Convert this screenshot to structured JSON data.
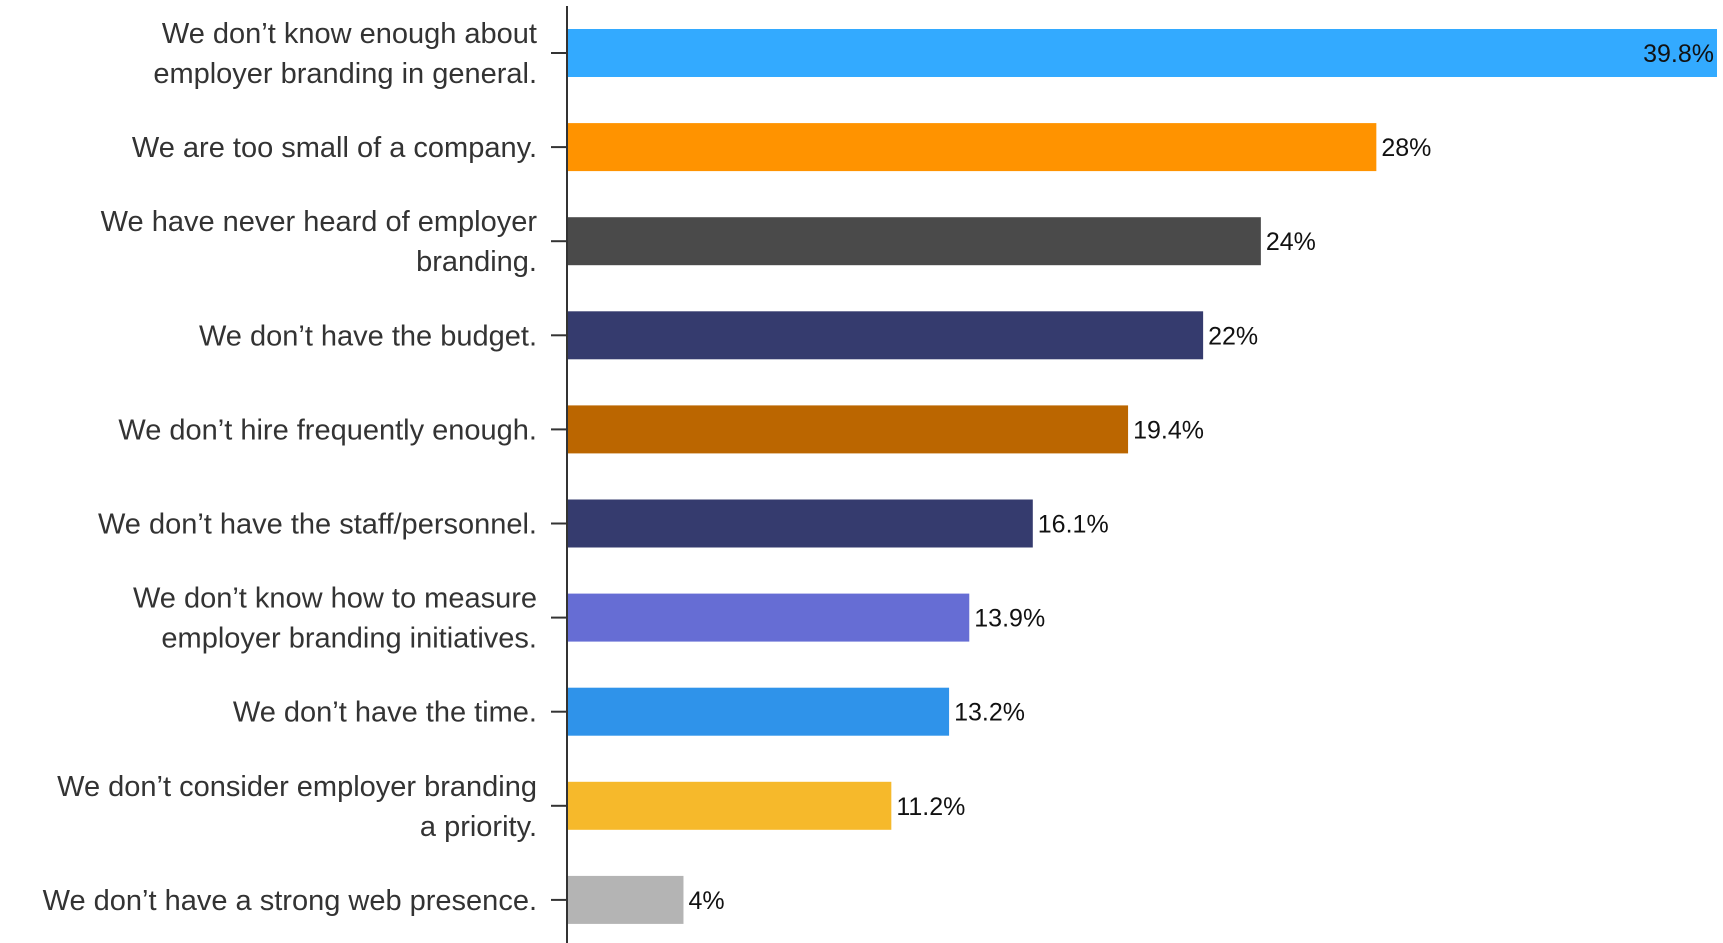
{
  "chart_data": {
    "type": "bar",
    "orientation": "horizontal",
    "title": "",
    "xlabel": "",
    "ylabel": "",
    "xlim": [
      0,
      39.8
    ],
    "grid": false,
    "legend": "none",
    "unit_suffix": "%",
    "categories": [
      "We don’t know enough about employer branding in general.",
      "We are too small of a company.",
      "We have never heard of employer branding.",
      "We don’t have the budget.",
      "We don’t hire frequently enough.",
      "We don’t have the staff/personnel.",
      "We don’t know how to measure employer branding initiatives.",
      "We don’t have the time.",
      "We don’t consider employer branding a priority.",
      "We don’t have a strong web presence."
    ],
    "category_lines": [
      [
        "We don’t know enough about",
        "employer branding in general."
      ],
      [
        "We are too small of a company."
      ],
      [
        "We have never heard of employer",
        "branding."
      ],
      [
        "We don’t have the budget."
      ],
      [
        "We don’t hire frequently enough."
      ],
      [
        "We don’t have the staff/personnel."
      ],
      [
        "We don’t know how to measure",
        "employer branding initiatives."
      ],
      [
        "We don’t have the time."
      ],
      [
        "We don’t consider employer branding",
        "a priority."
      ],
      [
        "We don’t have a strong web presence."
      ]
    ],
    "values": [
      39.8,
      28,
      24,
      22,
      19.4,
      16.1,
      13.9,
      13.2,
      11.2,
      4
    ],
    "value_labels": [
      "39.8%",
      "28%",
      "24%",
      "22%",
      "19.4%",
      "16.1%",
      "13.9%",
      "13.2%",
      "11.2%",
      "4%"
    ],
    "colors": [
      "#33aaff",
      "#ff9300",
      "#4a4a4a",
      "#353b6e",
      "#bb6600",
      "#353b6e",
      "#666dd4",
      "#2f93ea",
      "#f6b92b",
      "#b4b4b4"
    ],
    "axis_color": "#333333"
  }
}
